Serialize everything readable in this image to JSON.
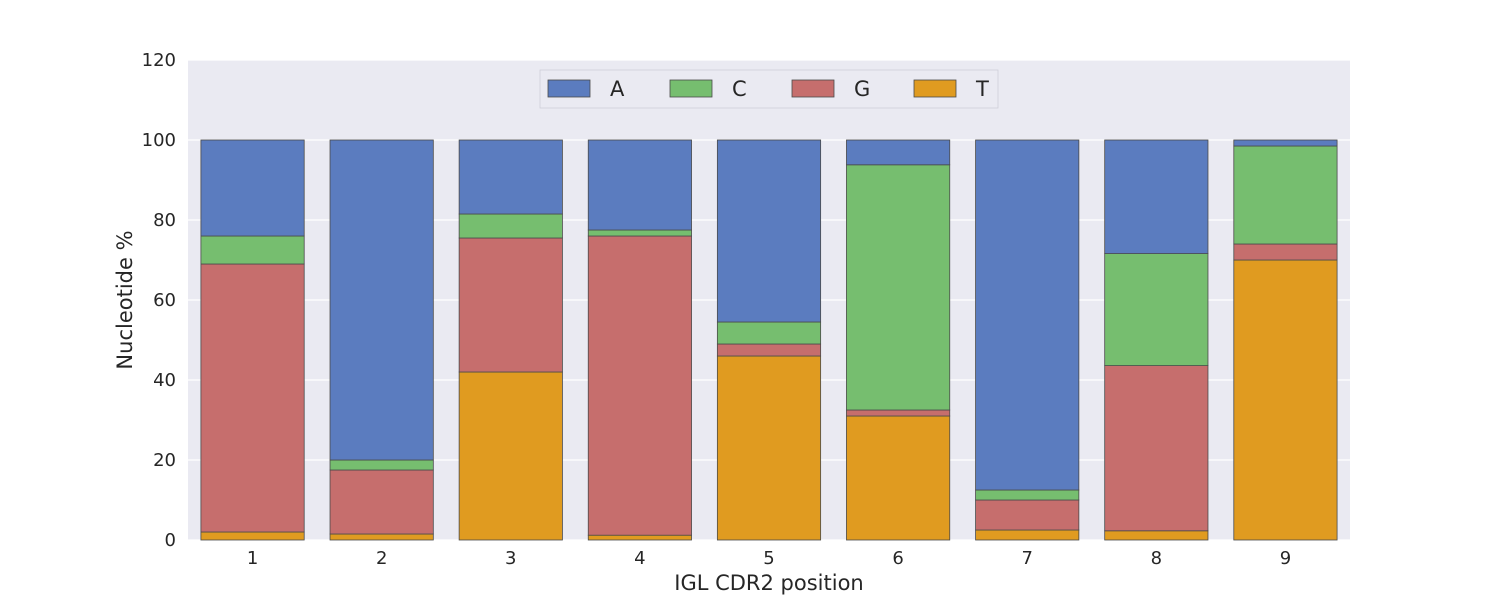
{
  "chart_data": {
    "type": "bar",
    "stacked": true,
    "title": "",
    "xlabel": "IGL CDR2 position",
    "ylabel": "Nucleotide %",
    "ylim": [
      0,
      120
    ],
    "yticks": [
      0,
      20,
      40,
      60,
      80,
      100,
      120
    ],
    "categories": [
      "1",
      "2",
      "3",
      "4",
      "5",
      "6",
      "7",
      "8",
      "9"
    ],
    "grid": true,
    "legend_position": "top-center",
    "background": "#eaeaf2",
    "series": [
      {
        "name": "T",
        "color": "#e09b20",
        "values": [
          2,
          1.5,
          42,
          1.2,
          46,
          31,
          2.5,
          2.3,
          70
        ]
      },
      {
        "name": "G",
        "color": "#c66e6d",
        "values": [
          67,
          16,
          33.5,
          74.8,
          3,
          1.5,
          7.5,
          41.3,
          4
        ]
      },
      {
        "name": "C",
        "color": "#76be6f",
        "values": [
          7,
          2.5,
          6,
          1.5,
          5.5,
          61.3,
          2.5,
          28,
          24.5
        ]
      },
      {
        "name": "A",
        "color": "#5b7cbf",
        "values": [
          24,
          80,
          18.5,
          22.5,
          45.5,
          6.2,
          87.5,
          28.4,
          1.5
        ]
      }
    ],
    "legend_order": [
      "A",
      "C",
      "G",
      "T"
    ]
  }
}
